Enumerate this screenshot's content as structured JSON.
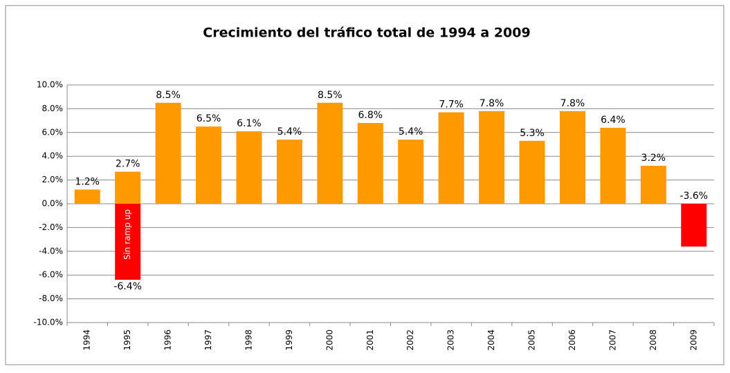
{
  "chart_data": {
    "type": "bar",
    "title": "Crecimiento del tráfico total de 1994 a 2009",
    "categories": [
      "1994",
      "1995",
      "1996",
      "1997",
      "1998",
      "1999",
      "2000",
      "2001",
      "2002",
      "2003",
      "2004",
      "2005",
      "2006",
      "2007",
      "2008",
      "2009"
    ],
    "series": [
      {
        "colors": [
          "#ff9900",
          "#ff9900",
          "#ff9900",
          "#ff9900",
          "#ff9900",
          "#ff9900",
          "#ff9900",
          "#ff9900",
          "#ff9900",
          "#ff9900",
          "#ff9900",
          "#ff9900",
          "#ff9900",
          "#ff9900",
          "#ff9900",
          "#ff0000"
        ],
        "values": [
          1.2,
          2.7,
          8.5,
          6.5,
          6.1,
          5.4,
          8.5,
          6.8,
          5.4,
          7.7,
          7.8,
          5.3,
          7.8,
          6.4,
          3.2,
          -3.6
        ],
        "value_labels": [
          "1.2%",
          "2.7%",
          "8.5%",
          "6.5%",
          "6.1%",
          "5.4%",
          "8.5%",
          "6.8%",
          "5.4%",
          "7.7%",
          "7.8%",
          "5.3%",
          "7.8%",
          "6.4%",
          "3.2%",
          "-3.6%"
        ]
      },
      {
        "name": "Sin ramp up",
        "color": "#ff0000",
        "values": [
          null,
          -6.4,
          null,
          null,
          null,
          null,
          null,
          null,
          null,
          null,
          null,
          null,
          null,
          null,
          null,
          null
        ],
        "value_labels": [
          null,
          "-6.4%",
          null,
          null,
          null,
          null,
          null,
          null,
          null,
          null,
          null,
          null,
          null,
          null,
          null,
          null
        ]
      }
    ],
    "ylim": [
      -10,
      10
    ],
    "yticks": [
      {
        "value": -10,
        "label": "-10.0%"
      },
      {
        "value": -8,
        "label": "-8.0%"
      },
      {
        "value": -6,
        "label": "-6.0%"
      },
      {
        "value": -4,
        "label": "-4.0%"
      },
      {
        "value": -2,
        "label": "-2.0%"
      },
      {
        "value": 0,
        "label": "0.0%"
      },
      {
        "value": 2,
        "label": "2.0%"
      },
      {
        "value": 4,
        "label": "4.0%"
      },
      {
        "value": 6,
        "label": "6.0%"
      },
      {
        "value": 8,
        "label": "8.0%"
      },
      {
        "value": 10,
        "label": "10.0%"
      }
    ],
    "grid": true
  }
}
